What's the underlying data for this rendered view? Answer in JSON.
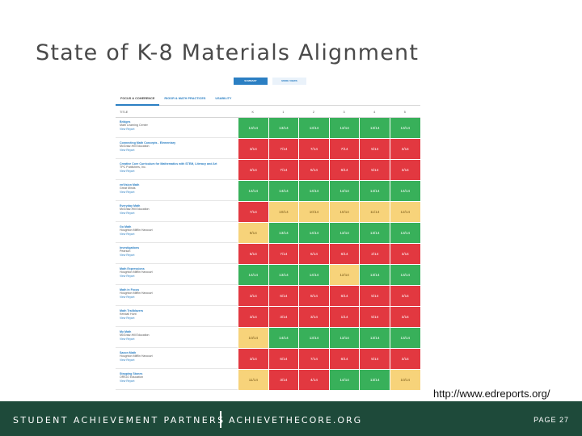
{
  "slide": {
    "title": "State of K-8 Materials Alignment"
  },
  "toggle": {
    "summary": "SUMMARY",
    "more_views": "MORE VIEWS"
  },
  "tabs": [
    "FOCUS & COHERENCE",
    "RIGOR & MATH PRACTICES",
    "USABILITY"
  ],
  "columns": [
    "TITLE",
    "K",
    "1",
    "2",
    "3",
    "4",
    "5"
  ],
  "view_report_label": "View Report",
  "rows": [
    {
      "name": "Bridges",
      "publisher": "Math Learning Center",
      "scores": [
        "13/14",
        "13/14",
        "13/14",
        "13/14",
        "13/14",
        "13/14"
      ],
      "ratings": [
        "g",
        "g",
        "g",
        "g",
        "g",
        "g"
      ]
    },
    {
      "name": "Connecting Math Concepts - Elementary",
      "publisher": "McGraw-Hill Education",
      "scores": [
        "3/14",
        "7/14",
        "7/14",
        "7/14",
        "5/14",
        "3/14"
      ],
      "ratings": [
        "r",
        "r",
        "r",
        "r",
        "r",
        "r"
      ]
    },
    {
      "name": "Creative Core Curriculum for Mathematics with STEM, Literacy and Art",
      "publisher": "TPC Publishers, Inc.",
      "scores": [
        "3/14",
        "7/14",
        "6/14",
        "6/14",
        "5/14",
        "3/14"
      ],
      "ratings": [
        "r",
        "r",
        "r",
        "r",
        "r",
        "r"
      ]
    },
    {
      "name": "enVision Math",
      "publisher": "Great Minds",
      "scores": [
        "14/14",
        "14/14",
        "14/14",
        "14/14",
        "14/14",
        "14/14"
      ],
      "ratings": [
        "g",
        "g",
        "g",
        "g",
        "g",
        "g"
      ]
    },
    {
      "name": "Everyday Math",
      "publisher": "McGraw-Hill Education",
      "scores": [
        "7/14",
        "10/14",
        "10/14",
        "10/14",
        "11/14",
        "12/14"
      ],
      "ratings": [
        "r",
        "y",
        "y",
        "y",
        "y",
        "y"
      ]
    },
    {
      "name": "Go Math",
      "publisher": "Houghton Mifflin Harcourt",
      "scores": [
        "8/14",
        "13/14",
        "14/14",
        "13/14",
        "13/14",
        "13/14"
      ],
      "ratings": [
        "y",
        "g",
        "g",
        "g",
        "g",
        "g"
      ]
    },
    {
      "name": "Investigations",
      "publisher": "Pearson",
      "scores": [
        "5/14",
        "7/14",
        "6/14",
        "6/14",
        "2/14",
        "3/14"
      ],
      "ratings": [
        "r",
        "r",
        "r",
        "r",
        "r",
        "r"
      ]
    },
    {
      "name": "Math Expressions",
      "publisher": "Houghton Mifflin Harcourt",
      "scores": [
        "14/14",
        "13/14",
        "14/14",
        "12/14",
        "13/14",
        "13/14"
      ],
      "ratings": [
        "g",
        "g",
        "g",
        "y",
        "g",
        "g"
      ]
    },
    {
      "name": "Math in Focus",
      "publisher": "Houghton Mifflin Harcourt",
      "scores": [
        "3/14",
        "6/14",
        "8/14",
        "6/14",
        "5/14",
        "3/14"
      ],
      "ratings": [
        "r",
        "r",
        "r",
        "r",
        "r",
        "r"
      ]
    },
    {
      "name": "Math Trailblazers",
      "publisher": "Kendall Hunt",
      "scores": [
        "3/14",
        "3/14",
        "3/14",
        "1/14",
        "5/14",
        "3/14"
      ],
      "ratings": [
        "r",
        "r",
        "r",
        "r",
        "r",
        "r"
      ]
    },
    {
      "name": "My Math",
      "publisher": "McGraw-Hill Education",
      "scores": [
        "10/14",
        "14/14",
        "13/14",
        "13/14",
        "13/14",
        "13/14"
      ],
      "ratings": [
        "y",
        "g",
        "g",
        "g",
        "g",
        "g"
      ]
    },
    {
      "name": "Saxon Math",
      "publisher": "Houghton Mifflin Harcourt",
      "scores": [
        "3/14",
        "6/14",
        "7/14",
        "6/14",
        "5/14",
        "3/14"
      ],
      "ratings": [
        "r",
        "r",
        "r",
        "r",
        "r",
        "r"
      ]
    },
    {
      "name": "Stepping Stones",
      "publisher": "ORIGO Education",
      "scores": [
        "11/14",
        "3/14",
        "4/14",
        "14/14",
        "13/14",
        "10/14"
      ],
      "ratings": [
        "y",
        "r",
        "r",
        "g",
        "g",
        "y"
      ]
    }
  ],
  "colors": {
    "meets": "#38b05a",
    "partial": "#f7d37a",
    "does_not_meet": "#e23840",
    "footer": "#1e4a3a",
    "link": "#2b7fc3"
  },
  "source_url": "http://www.edreports.org/",
  "footer": {
    "brand": "STUDENT ACHIEVEMENT PARTNERS",
    "brand2": "ACHIEVETHECORE.ORG",
    "page": "PAGE 27"
  }
}
